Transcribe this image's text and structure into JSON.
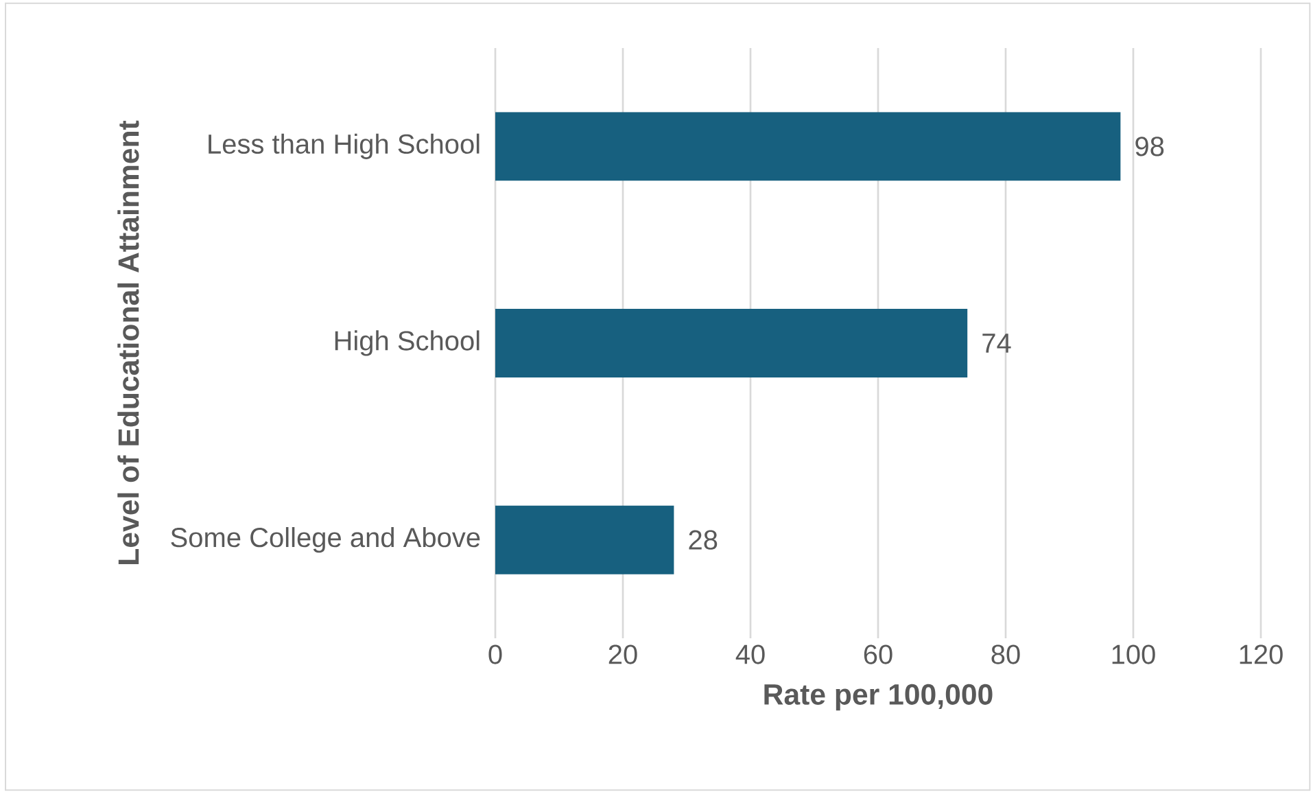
{
  "chart_data": {
    "type": "bar",
    "orientation": "horizontal",
    "categories": [
      "Less than High School",
      "High School",
      "Some College and Above"
    ],
    "values": [
      98,
      74,
      28
    ],
    "color": "#17607f",
    "xlim": [
      0,
      120
    ],
    "xticks": [
      0,
      20,
      40,
      60,
      80,
      100,
      120
    ],
    "grid": "x",
    "data_labels": true,
    "xlabel": "Rate per 100,000",
    "ylabel": "Level of Educational Attainment"
  }
}
